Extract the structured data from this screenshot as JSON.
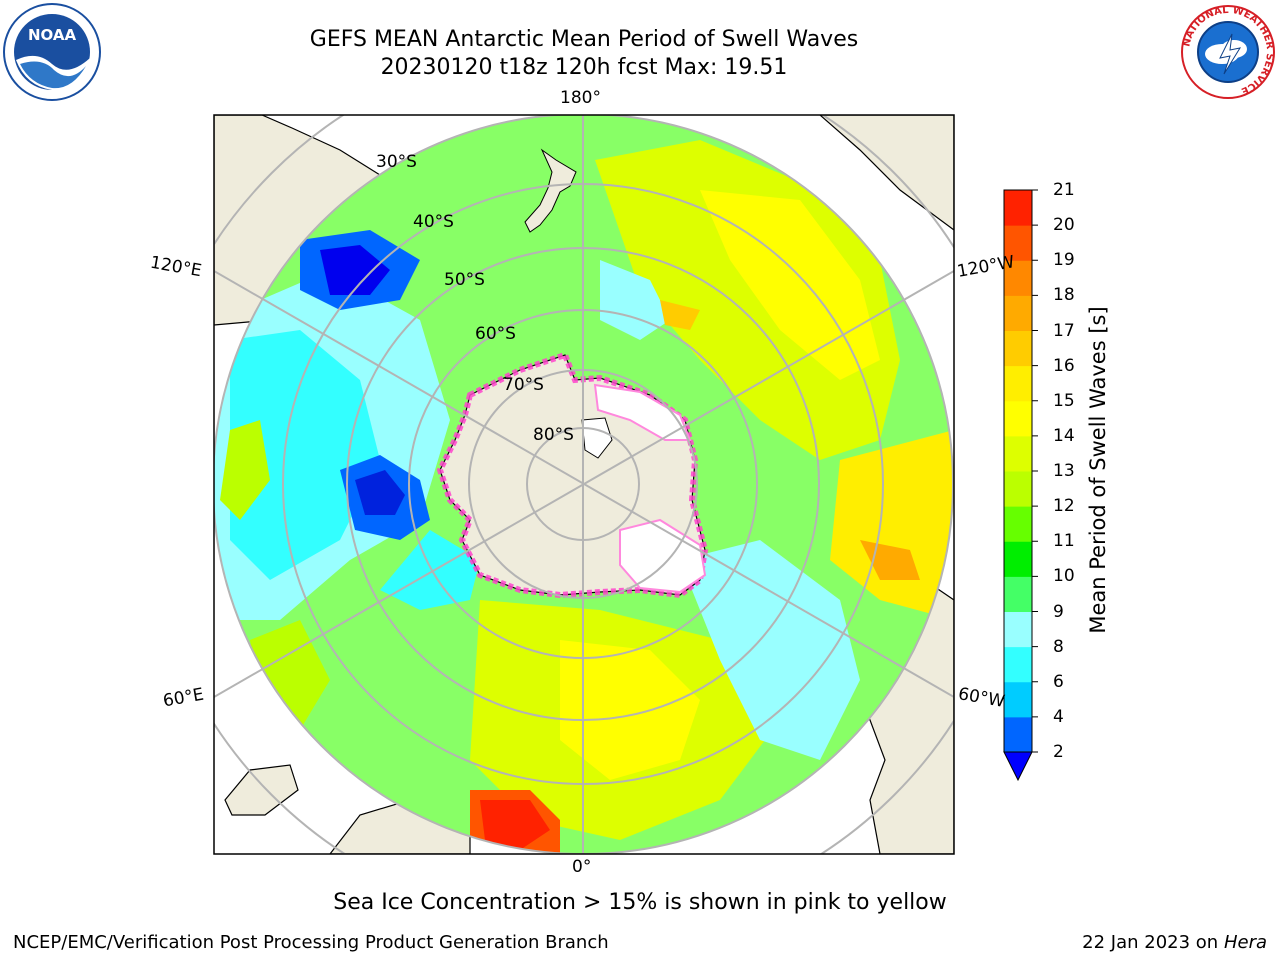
{
  "title": {
    "line1": "GEFS MEAN Antarctic Mean Period of Swell Waves",
    "line2": "20230120 t18z 120h fcst   Max: 19.51"
  },
  "map": {
    "projection": "south-polar-stereographic",
    "meridian_labels": {
      "top": "180°",
      "bottom": "0°",
      "upper_left": "120°E",
      "upper_right": "120°W",
      "lower_left": "60°E",
      "lower_right": "60°W"
    },
    "latitude_labels": [
      "30°S",
      "40°S",
      "50°S",
      "60°S",
      "70°S",
      "80°S"
    ],
    "land_color": "#efecdc",
    "ocean_fill_regions": [
      {
        "region": "southern-indian-ocean",
        "period_s": 8
      },
      {
        "region": "kerguelen-area",
        "period_s": 3
      },
      {
        "region": "australia-west-coast",
        "period_s": 3
      },
      {
        "region": "south-pacific",
        "period_s": 13
      },
      {
        "region": "tasman-sea",
        "period_s": 11
      },
      {
        "region": "drake-passage",
        "period_s": 9
      },
      {
        "region": "south-atlantic-max",
        "period_s": 18
      },
      {
        "region": "southeast-pacific",
        "period_s": 16
      }
    ],
    "sea_ice_color": "#ff44cc"
  },
  "colorbar": {
    "label": "Mean Period of Swell Waves [s]",
    "ticks": [
      "2",
      "4",
      "6",
      "8",
      "9",
      "10",
      "11",
      "12",
      "13",
      "14",
      "15",
      "16",
      "17",
      "18",
      "19",
      "20",
      "21"
    ],
    "colors": [
      "#0066ff",
      "#00ccff",
      "#33ffff",
      "#99ffff",
      "#44ff66",
      "#00ee00",
      "#66ff00",
      "#bbff00",
      "#ddff00",
      "#ffff00",
      "#ffee00",
      "#ffcc00",
      "#ffaa00",
      "#ff8800",
      "#ff5500",
      "#ff2200"
    ],
    "under_color": "#0000ff"
  },
  "caption": "Sea Ice Concentration > 15% is shown in pink to yellow",
  "footer": {
    "left": "NCEP/EMC/Verification Post Processing Product Generation Branch",
    "right_date": "22 Jan 2023 on",
    "right_host": "Hera"
  },
  "logos": {
    "left": "NOAA",
    "right": "NATIONAL WEATHER SERVICE"
  }
}
